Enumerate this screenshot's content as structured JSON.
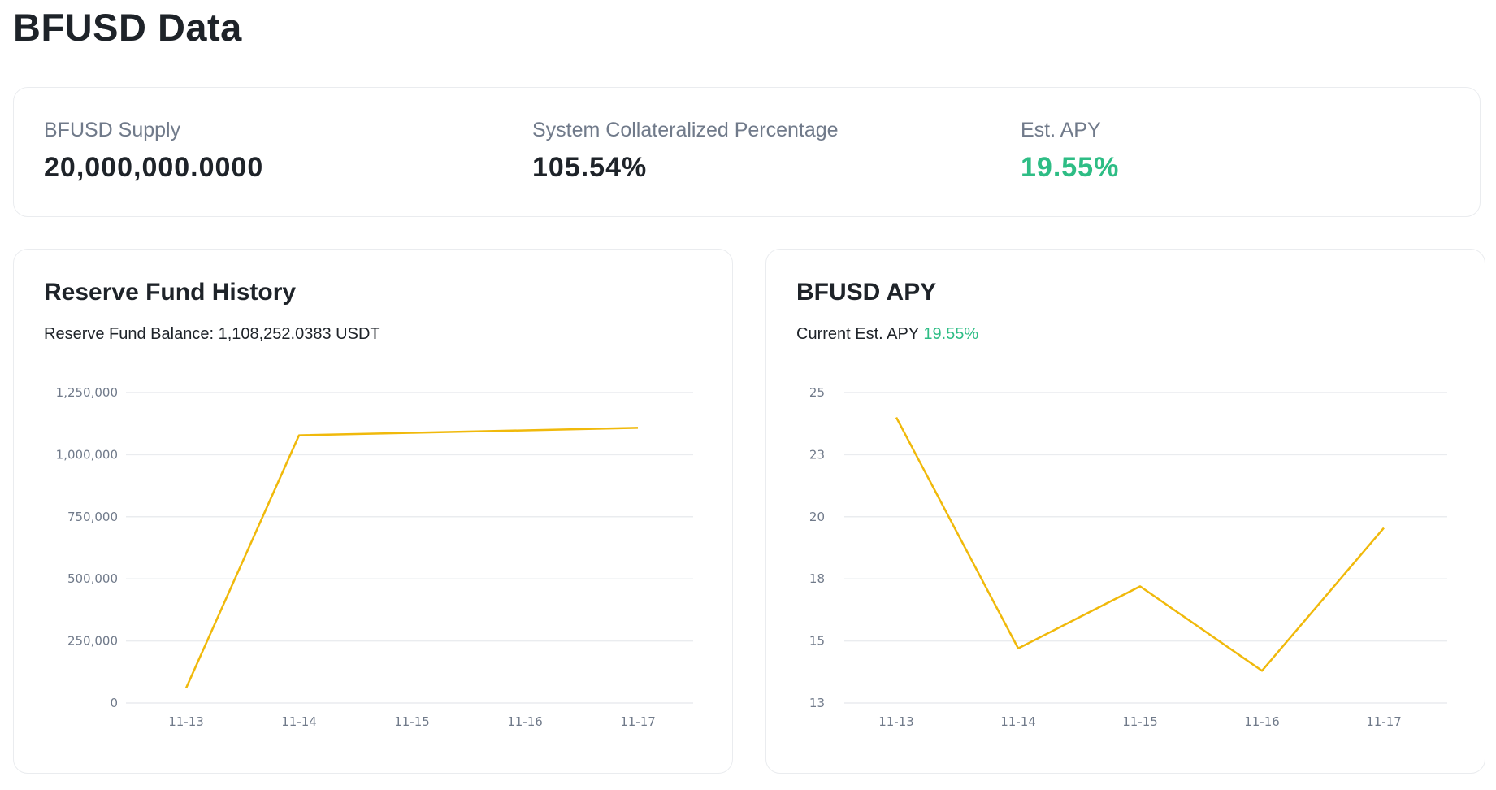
{
  "page": {
    "title": "BFUSD Data"
  },
  "stats": [
    {
      "label": "BFUSD Supply",
      "value": "20,000,000.0000"
    },
    {
      "label": "System Collateralized Percentage",
      "value": "105.54%"
    },
    {
      "label": "Est. APY",
      "value": "19.55%"
    }
  ],
  "reserve_card": {
    "title": "Reserve Fund History",
    "balance_label": "Reserve Fund Balance:",
    "balance_value": "1,108,252.0383 USDT"
  },
  "apy_card": {
    "title": "BFUSD APY",
    "current_label": "Current Est. APY",
    "current_value": "19.55%"
  },
  "colors": {
    "line": "#f0b90b",
    "green": "#2ebd85",
    "grid": "#eaecef"
  },
  "chart_data": [
    {
      "type": "line",
      "title": "Reserve Fund History",
      "categories": [
        "11-13",
        "11-14",
        "11-15",
        "11-16",
        "11-17"
      ],
      "values": [
        60000,
        1078000,
        1088000,
        1098000,
        1108252
      ],
      "ylim": [
        0,
        1250000
      ],
      "yticks": [
        0,
        250000,
        500000,
        750000,
        1000000,
        1250000
      ],
      "ytick_labels": [
        "0",
        "250,000",
        "500,000",
        "750,000",
        "1,000,000",
        "1,250,000"
      ],
      "grid": true
    },
    {
      "type": "line",
      "title": "BFUSD APY",
      "categories": [
        "11-13",
        "11-14",
        "11-15",
        "11-16",
        "11-17"
      ],
      "values": [
        24.0,
        14.7,
        17.2,
        13.8,
        19.55
      ],
      "ylim": [
        12.5,
        25
      ],
      "yticks": [
        12.5,
        15,
        17.5,
        20,
        22.5,
        25
      ],
      "ytick_labels": [
        "13",
        "15",
        "18",
        "20",
        "23",
        "25"
      ],
      "grid": true
    }
  ]
}
